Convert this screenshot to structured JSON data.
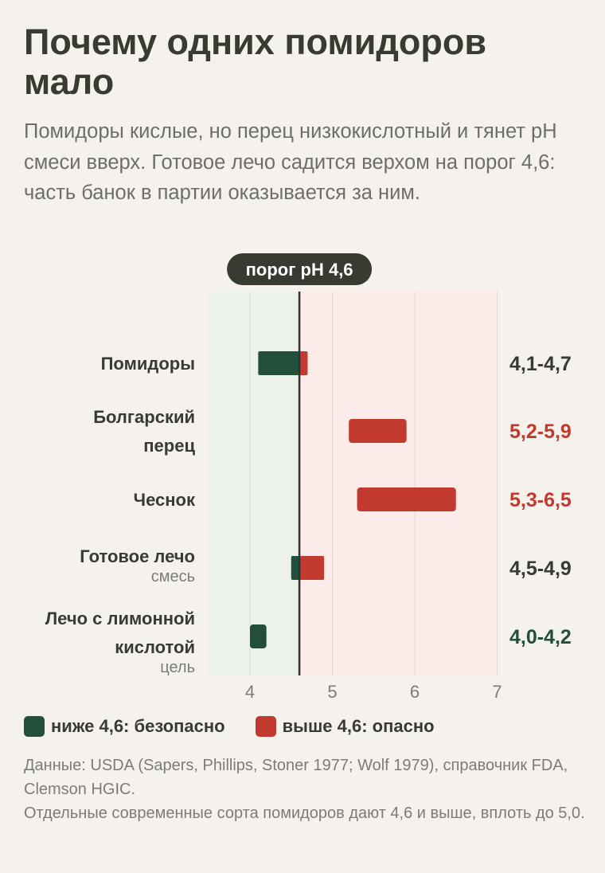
{
  "title": "Почему одних помидоров мало",
  "subtitle": "Помидоры кислые, но перец низкокислотный и тянет pH смеси вверх. Готовое лечо садится верхом на порог 4,6: часть банок в партии оказывается за ним.",
  "colors": {
    "safe": "#244e3c",
    "danger": "#c23a2e",
    "safe_zone": "#edf1ec",
    "danger_zone": "#fbecea",
    "text": "#373b32"
  },
  "chart_data": {
    "type": "range-bar",
    "threshold": 4.6,
    "threshold_label": "порог pH 4,6",
    "xlim": [
      3.5,
      7.05
    ],
    "xticks": [
      4,
      5,
      6,
      7
    ],
    "xtick_labels": [
      "4",
      "5",
      "6",
      "7"
    ],
    "rows": [
      {
        "label_lines": [
          "Помидоры"
        ],
        "sublabel": "",
        "min": 4.1,
        "max": 4.7,
        "range_label": "4,1-4,7",
        "label_color": "text"
      },
      {
        "label_lines": [
          "Болгарский",
          "перец"
        ],
        "sublabel": "",
        "min": 5.2,
        "max": 5.9,
        "range_label": "5,2-5,9",
        "label_color": "danger"
      },
      {
        "label_lines": [
          "Чеснок"
        ],
        "sublabel": "",
        "min": 5.3,
        "max": 6.5,
        "range_label": "5,3-6,5",
        "label_color": "danger"
      },
      {
        "label_lines": [
          "Готовое лечо"
        ],
        "sublabel": "смесь",
        "min": 4.5,
        "max": 4.9,
        "range_label": "4,5-4,9",
        "label_color": "text"
      },
      {
        "label_lines": [
          "Лечо с лимонной",
          "кислотой"
        ],
        "sublabel": "цель",
        "min": 4.0,
        "max": 4.2,
        "range_label": "4,0-4,2",
        "label_color": "safe"
      }
    ]
  },
  "legend": {
    "safe_label": "ниже 4,6: безопасно",
    "danger_label": "выше 4,6: опасно"
  },
  "source": {
    "line1": "Данные: USDA (Sapers, Phillips, Stoner 1977; Wolf 1979), справочник FDA, Clemson HGIC.",
    "line2": "Отдельные современные сорта помидоров дают 4,6 и выше, вплоть до 5,0."
  }
}
